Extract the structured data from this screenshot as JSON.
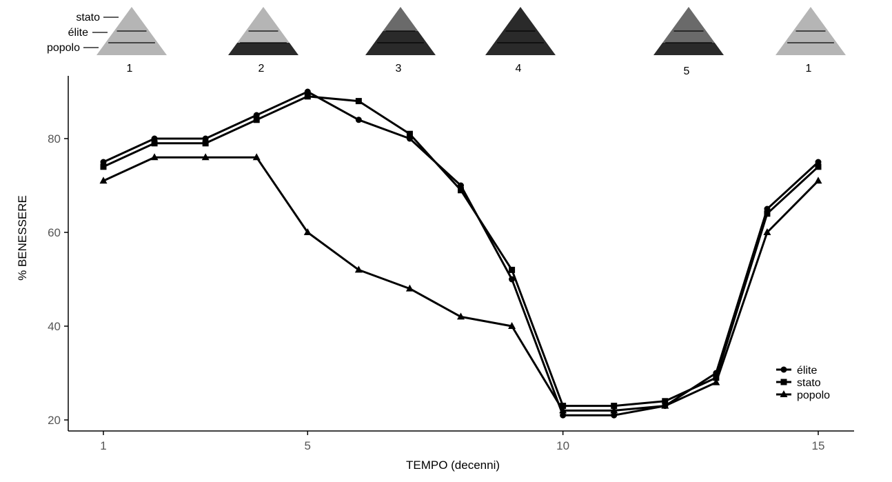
{
  "chart_data": {
    "type": "line",
    "title": "",
    "xlabel": "TEMPO (decenni)",
    "ylabel": "% BENESSERE",
    "xlim": [
      1,
      15
    ],
    "ylim": [
      20,
      90
    ],
    "xticks": [
      1,
      5,
      10,
      15
    ],
    "yticks": [
      20,
      40,
      60,
      80
    ],
    "grid": false,
    "legend_position": "bottom-right",
    "series": [
      {
        "name": "élite",
        "marker": "circle",
        "x": [
          1,
          2,
          3,
          4,
          5,
          6,
          7,
          8,
          9,
          10,
          11,
          12,
          13,
          14,
          15
        ],
        "y": [
          75,
          80,
          80,
          85,
          90,
          84,
          80,
          70,
          50,
          21,
          21,
          23,
          30,
          65,
          75
        ]
      },
      {
        "name": "stato",
        "marker": "square",
        "x": [
          1,
          2,
          3,
          4,
          5,
          6,
          7,
          8,
          9,
          10,
          11,
          12,
          13,
          14,
          15
        ],
        "y": [
          74,
          79,
          79,
          84,
          89,
          88,
          81,
          69,
          52,
          23,
          23,
          24,
          29,
          64,
          74
        ]
      },
      {
        "name": "popolo",
        "marker": "triangle",
        "x": [
          1,
          2,
          3,
          4,
          5,
          6,
          7,
          8,
          9,
          10,
          11,
          12,
          13,
          14,
          15
        ],
        "y": [
          71,
          76,
          76,
          76,
          60,
          52,
          48,
          42,
          40,
          22,
          22,
          23,
          28,
          60,
          71
        ]
      }
    ]
  },
  "pyramids": {
    "layer_labels": [
      "stato",
      "élite",
      "popolo"
    ],
    "items": [
      {
        "number": "1",
        "x_position": 1,
        "layer_colors": [
          "#b5b5b5",
          "#b5b5b5",
          "#b5b5b5"
        ]
      },
      {
        "number": "2",
        "x_position": 4.6,
        "layer_colors": [
          "#b5b5b5",
          "#b5b5b5",
          "#2a2a2a"
        ]
      },
      {
        "number": "3",
        "x_position": 9.0,
        "layer_colors": [
          "#6a6a6a",
          "#2a2a2a",
          "#2a2a2a"
        ]
      },
      {
        "number": "4",
        "x_position": 12.6,
        "layer_colors": [
          "#2a2a2a",
          "#2a2a2a",
          "#2a2a2a"
        ]
      },
      {
        "number": "5",
        "x_position": 18.0,
        "layer_colors": [
          "#6a6a6a",
          "#6a6a6a",
          "#2a2a2a"
        ]
      },
      {
        "number": "1",
        "x_position": 21.8,
        "layer_colors": [
          "#b5b5b5",
          "#b5b5b5",
          "#b5b5b5"
        ]
      }
    ]
  }
}
